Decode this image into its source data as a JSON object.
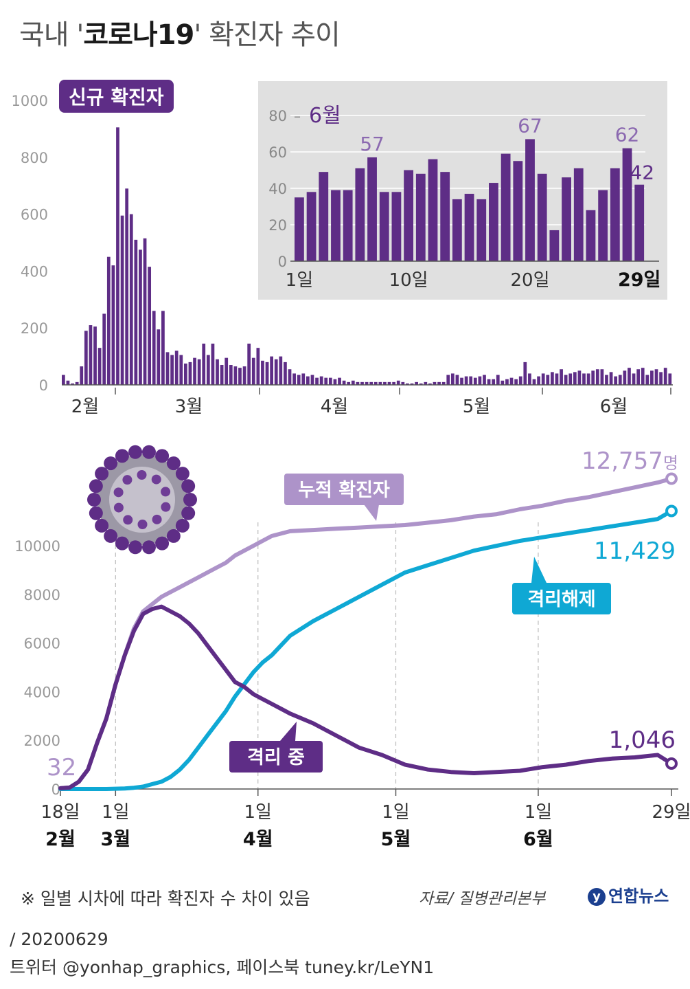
{
  "title": {
    "prefix": "국내 '",
    "bold": "코로나19",
    "suffix": "' 확진자 추이"
  },
  "colors": {
    "purple": "#5e2d86",
    "light_purple": "#ad93c9",
    "cyan": "#0fa8d4",
    "inset_bg": "#e0e0e0"
  },
  "chart_data": [
    {
      "type": "bar",
      "title": "신규 확진자",
      "yticks": [
        0,
        200,
        400,
        600,
        800,
        1000
      ],
      "ylim": [
        0,
        1000
      ],
      "month_labels": [
        "2월",
        "3월",
        "4월",
        "5월",
        "6월"
      ],
      "values": [
        35,
        15,
        5,
        10,
        65,
        190,
        210,
        205,
        130,
        250,
        450,
        420,
        905,
        595,
        690,
        600,
        510,
        475,
        515,
        415,
        260,
        195,
        260,
        115,
        105,
        120,
        105,
        75,
        80,
        95,
        90,
        145,
        105,
        145,
        90,
        70,
        95,
        70,
        65,
        60,
        65,
        145,
        95,
        130,
        85,
        80,
        100,
        90,
        100,
        80,
        55,
        40,
        35,
        40,
        30,
        35,
        25,
        30,
        25,
        25,
        20,
        25,
        15,
        10,
        15,
        10,
        10,
        10,
        10,
        10,
        10,
        10,
        10,
        10,
        15,
        10,
        5,
        5,
        10,
        5,
        10,
        5,
        10,
        10,
        10,
        35,
        40,
        35,
        25,
        30,
        30,
        25,
        30,
        35,
        20,
        20,
        35,
        15,
        20,
        25,
        20,
        30,
        80,
        40,
        20,
        30,
        40,
        35,
        45,
        40,
        55,
        35,
        40,
        45,
        50,
        40,
        40,
        50,
        55,
        55,
        35,
        45,
        30,
        35,
        50,
        60,
        40,
        55,
        60,
        35,
        50,
        55,
        45,
        60,
        40
      ],
      "inset": {
        "title": "6월",
        "yticks": [
          0,
          20,
          40,
          60,
          80
        ],
        "ylim": [
          0,
          80
        ],
        "categories": [
          "1",
          "2",
          "3",
          "4",
          "5",
          "6",
          "7",
          "8",
          "9",
          "10",
          "11",
          "12",
          "13",
          "14",
          "15",
          "16",
          "17",
          "18",
          "19",
          "20",
          "21",
          "22",
          "23",
          "24",
          "25",
          "26",
          "27",
          "28",
          "29"
        ],
        "values": [
          35,
          38,
          49,
          39,
          39,
          51,
          57,
          38,
          38,
          50,
          48,
          56,
          49,
          34,
          37,
          34,
          43,
          59,
          55,
          67,
          48,
          17,
          46,
          51,
          28,
          39,
          51,
          62,
          42
        ],
        "xlabels": {
          "d1": "1일",
          "d10": "10일",
          "d20": "20일",
          "d29": "29일"
        },
        "annotations": {
          "d7": "57",
          "d20": "67",
          "d28": "62",
          "d29": "42"
        }
      }
    },
    {
      "type": "line",
      "yticks": [
        0,
        2000,
        4000,
        6000,
        8000,
        10000
      ],
      "ylim": [
        0,
        12800
      ],
      "x_days_since_feb18": [
        0,
        2,
        4,
        6,
        8,
        10,
        12,
        14,
        16,
        18,
        20,
        22,
        24,
        26,
        28,
        30,
        32,
        34,
        36,
        38,
        40,
        42,
        44,
        46,
        48,
        50,
        55,
        60,
        65,
        70,
        75,
        80,
        85,
        90,
        95,
        100,
        105,
        110,
        115,
        120,
        125,
        130,
        133
      ],
      "series": [
        {
          "name": "누적 확진자",
          "values": [
            32,
            60,
            300,
            800,
            1900,
            2900,
            4300,
            5500,
            6600,
            7300,
            7600,
            7900,
            8100,
            8300,
            8500,
            8700,
            8900,
            9100,
            9300,
            9600,
            9800,
            10000,
            10200,
            10400,
            10500,
            10600,
            10650,
            10700,
            10750,
            10800,
            10850,
            10950,
            11050,
            11200,
            11300,
            11500,
            11650,
            11850,
            12000,
            12200,
            12400,
            12600,
            12757
          ]
        },
        {
          "name": "격리해제",
          "values": [
            0,
            0,
            0,
            0,
            0,
            0,
            10,
            20,
            50,
            100,
            200,
            300,
            500,
            800,
            1200,
            1700,
            2200,
            2700,
            3200,
            3800,
            4300,
            4800,
            5200,
            5500,
            5900,
            6300,
            6900,
            7400,
            7900,
            8400,
            8900,
            9200,
            9500,
            9800,
            10000,
            10200,
            10350,
            10500,
            10650,
            10800,
            10950,
            11100,
            11429
          ]
        },
        {
          "name": "격리 중",
          "values": [
            32,
            60,
            300,
            800,
            1900,
            2900,
            4300,
            5500,
            6500,
            7200,
            7400,
            7500,
            7300,
            7100,
            6800,
            6400,
            5900,
            5400,
            4900,
            4400,
            4200,
            3900,
            3700,
            3500,
            3300,
            3100,
            2700,
            2200,
            1700,
            1400,
            1000,
            800,
            700,
            650,
            700,
            750,
            900,
            1000,
            1150,
            1250,
            1300,
            1400,
            1046
          ]
        }
      ],
      "start_label": "32",
      "end_labels": {
        "cumulative": "12,757",
        "cumulative_unit": "명",
        "released": "11,429",
        "isolated": "1,046"
      },
      "callouts": {
        "cumulative": "누적 확진자",
        "released": "격리해제",
        "isolated": "격리 중"
      },
      "x_ticks": [
        {
          "day": "18일",
          "month": "2월"
        },
        {
          "day": "1일",
          "month": "3월"
        },
        {
          "day": "1일",
          "month": "4월"
        },
        {
          "day": "1일",
          "month": "5월"
        },
        {
          "day": "1일",
          "month": "6월"
        },
        {
          "day": "29일",
          "month": ""
        }
      ]
    }
  ],
  "footnote": "※ 일별 시차에 따라 확진자 수 차이 있음",
  "source": "자료/ 질병관리본부",
  "logo": "연합뉴스",
  "date": "/ 20200629",
  "credit": "트위터 @yonhap_graphics, 페이스북 tuney.kr/LeYN1"
}
